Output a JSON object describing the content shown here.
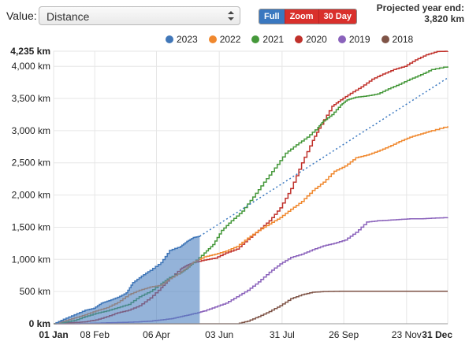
{
  "toolbar": {
    "value_label": "Value:",
    "select_value": "Distance",
    "buttons": {
      "full": "Full",
      "zoom": "Zoom",
      "thirty_day": "30 Day"
    },
    "projection_label": "Projected year end:",
    "projection_value": "3,820 km"
  },
  "colors": {
    "2023": "#4177b8",
    "2022": "#f0882e",
    "2021": "#45983a",
    "2020": "#c0312b",
    "2019": "#8a62bb",
    "2018": "#7f5447",
    "projection": "#3a78c0",
    "fill_2023": "#4c80c0"
  },
  "legend": [
    "2023",
    "2022",
    "2021",
    "2020",
    "2019",
    "2018"
  ],
  "chart_data": {
    "type": "line",
    "xlabel": "",
    "ylabel": "",
    "ylim": [
      0,
      4235
    ],
    "xlim": [
      "01 Jan",
      "31 Dec"
    ],
    "y_ticks": [
      "0 km",
      "500 km",
      "1,000 km",
      "1,500 km",
      "2,000 km",
      "2,500 km",
      "3,000 km",
      "3,500 km",
      "4,000 km",
      "4,235 km"
    ],
    "y_tick_values": [
      0,
      500,
      1000,
      1500,
      2000,
      2500,
      3000,
      3500,
      4000,
      4235
    ],
    "x_ticks": [
      "01 Jan",
      "08 Feb",
      "06 Apr",
      "03 Jun",
      "31 Jul",
      "26 Sep",
      "23 Nov",
      "31 Dec"
    ],
    "x_tick_days": [
      1,
      39,
      96,
      154,
      212,
      269,
      327,
      365
    ],
    "grid": true,
    "legend_position": "top",
    "series": [
      {
        "name": "2023",
        "filled": true,
        "points": [
          [
            1,
            0
          ],
          [
            10,
            70
          ],
          [
            20,
            140
          ],
          [
            30,
            210
          ],
          [
            38,
            240
          ],
          [
            45,
            320
          ],
          [
            52,
            360
          ],
          [
            60,
            410
          ],
          [
            68,
            480
          ],
          [
            74,
            640
          ],
          [
            82,
            740
          ],
          [
            90,
            830
          ],
          [
            100,
            950
          ],
          [
            108,
            1140
          ],
          [
            118,
            1200
          ],
          [
            124,
            1280
          ],
          [
            130,
            1340
          ],
          [
            136,
            1360
          ]
        ]
      },
      {
        "name": "2022",
        "points": [
          [
            1,
            0
          ],
          [
            10,
            40
          ],
          [
            20,
            90
          ],
          [
            30,
            140
          ],
          [
            40,
            200
          ],
          [
            50,
            250
          ],
          [
            60,
            330
          ],
          [
            70,
            450
          ],
          [
            80,
            520
          ],
          [
            90,
            570
          ],
          [
            100,
            600
          ],
          [
            108,
            700
          ],
          [
            118,
            800
          ],
          [
            124,
            870
          ],
          [
            130,
            960
          ],
          [
            140,
            1040
          ],
          [
            150,
            1080
          ],
          [
            160,
            1130
          ],
          [
            170,
            1200
          ],
          [
            180,
            1330
          ],
          [
            190,
            1450
          ],
          [
            200,
            1550
          ],
          [
            210,
            1650
          ],
          [
            220,
            1780
          ],
          [
            230,
            1900
          ],
          [
            240,
            2070
          ],
          [
            250,
            2200
          ],
          [
            260,
            2370
          ],
          [
            270,
            2450
          ],
          [
            280,
            2580
          ],
          [
            290,
            2620
          ],
          [
            300,
            2680
          ],
          [
            310,
            2750
          ],
          [
            320,
            2830
          ],
          [
            330,
            2900
          ],
          [
            340,
            2950
          ],
          [
            350,
            3000
          ],
          [
            365,
            3070
          ]
        ]
      },
      {
        "name": "2021",
        "points": [
          [
            1,
            0
          ],
          [
            10,
            20
          ],
          [
            20,
            50
          ],
          [
            30,
            110
          ],
          [
            40,
            160
          ],
          [
            50,
            200
          ],
          [
            60,
            250
          ],
          [
            70,
            300
          ],
          [
            80,
            420
          ],
          [
            90,
            500
          ],
          [
            100,
            620
          ],
          [
            108,
            720
          ],
          [
            118,
            790
          ],
          [
            124,
            860
          ],
          [
            130,
            950
          ],
          [
            140,
            1100
          ],
          [
            148,
            1230
          ],
          [
            156,
            1450
          ],
          [
            165,
            1600
          ],
          [
            175,
            1750
          ],
          [
            185,
            1970
          ],
          [
            195,
            2200
          ],
          [
            205,
            2420
          ],
          [
            215,
            2650
          ],
          [
            225,
            2780
          ],
          [
            235,
            2900
          ],
          [
            245,
            3050
          ],
          [
            250,
            3150
          ],
          [
            258,
            3250
          ],
          [
            266,
            3400
          ],
          [
            272,
            3480
          ],
          [
            280,
            3520
          ],
          [
            290,
            3540
          ],
          [
            300,
            3570
          ],
          [
            310,
            3650
          ],
          [
            320,
            3720
          ],
          [
            330,
            3800
          ],
          [
            340,
            3870
          ],
          [
            350,
            3950
          ],
          [
            365,
            4000
          ]
        ]
      },
      {
        "name": "2020",
        "points": [
          [
            1,
            0
          ],
          [
            10,
            10
          ],
          [
            20,
            20
          ],
          [
            30,
            30
          ],
          [
            40,
            60
          ],
          [
            50,
            110
          ],
          [
            60,
            170
          ],
          [
            70,
            210
          ],
          [
            80,
            280
          ],
          [
            90,
            400
          ],
          [
            100,
            560
          ],
          [
            108,
            700
          ],
          [
            118,
            850
          ],
          [
            124,
            910
          ],
          [
            130,
            950
          ],
          [
            140,
            990
          ],
          [
            150,
            1020
          ],
          [
            160,
            1100
          ],
          [
            170,
            1160
          ],
          [
            180,
            1310
          ],
          [
            190,
            1450
          ],
          [
            200,
            1600
          ],
          [
            210,
            1800
          ],
          [
            220,
            2100
          ],
          [
            230,
            2500
          ],
          [
            240,
            2850
          ],
          [
            248,
            3100
          ],
          [
            258,
            3380
          ],
          [
            266,
            3480
          ],
          [
            275,
            3580
          ],
          [
            285,
            3680
          ],
          [
            295,
            3800
          ],
          [
            305,
            3880
          ],
          [
            315,
            3950
          ],
          [
            325,
            4000
          ],
          [
            335,
            4100
          ],
          [
            345,
            4180
          ],
          [
            355,
            4230
          ],
          [
            365,
            4235
          ]
        ]
      },
      {
        "name": "2019",
        "points": [
          [
            1,
            0
          ],
          [
            20,
            0
          ],
          [
            40,
            10
          ],
          [
            60,
            20
          ],
          [
            80,
            30
          ],
          [
            90,
            40
          ],
          [
            100,
            60
          ],
          [
            110,
            80
          ],
          [
            118,
            110
          ],
          [
            126,
            140
          ],
          [
            134,
            170
          ],
          [
            140,
            200
          ],
          [
            150,
            260
          ],
          [
            160,
            320
          ],
          [
            170,
            420
          ],
          [
            180,
            520
          ],
          [
            190,
            650
          ],
          [
            200,
            800
          ],
          [
            210,
            930
          ],
          [
            220,
            1030
          ],
          [
            230,
            1080
          ],
          [
            240,
            1150
          ],
          [
            250,
            1210
          ],
          [
            260,
            1250
          ],
          [
            270,
            1300
          ],
          [
            280,
            1420
          ],
          [
            290,
            1580
          ],
          [
            300,
            1600
          ],
          [
            310,
            1610
          ],
          [
            320,
            1620
          ],
          [
            330,
            1630
          ],
          [
            340,
            1630
          ],
          [
            350,
            1640
          ],
          [
            365,
            1650
          ]
        ]
      },
      {
        "name": "2018",
        "points": [
          [
            1,
            0
          ],
          [
            150,
            0
          ],
          [
            170,
            0
          ],
          [
            180,
            40
          ],
          [
            190,
            110
          ],
          [
            200,
            190
          ],
          [
            210,
            280
          ],
          [
            220,
            390
          ],
          [
            230,
            450
          ],
          [
            240,
            490
          ],
          [
            250,
            500
          ],
          [
            270,
            505
          ],
          [
            300,
            505
          ],
          [
            330,
            505
          ],
          [
            365,
            505
          ]
        ]
      }
    ],
    "projection": {
      "name": "Projected",
      "from": [
        136,
        1360
      ],
      "to": [
        365,
        3820
      ]
    }
  }
}
